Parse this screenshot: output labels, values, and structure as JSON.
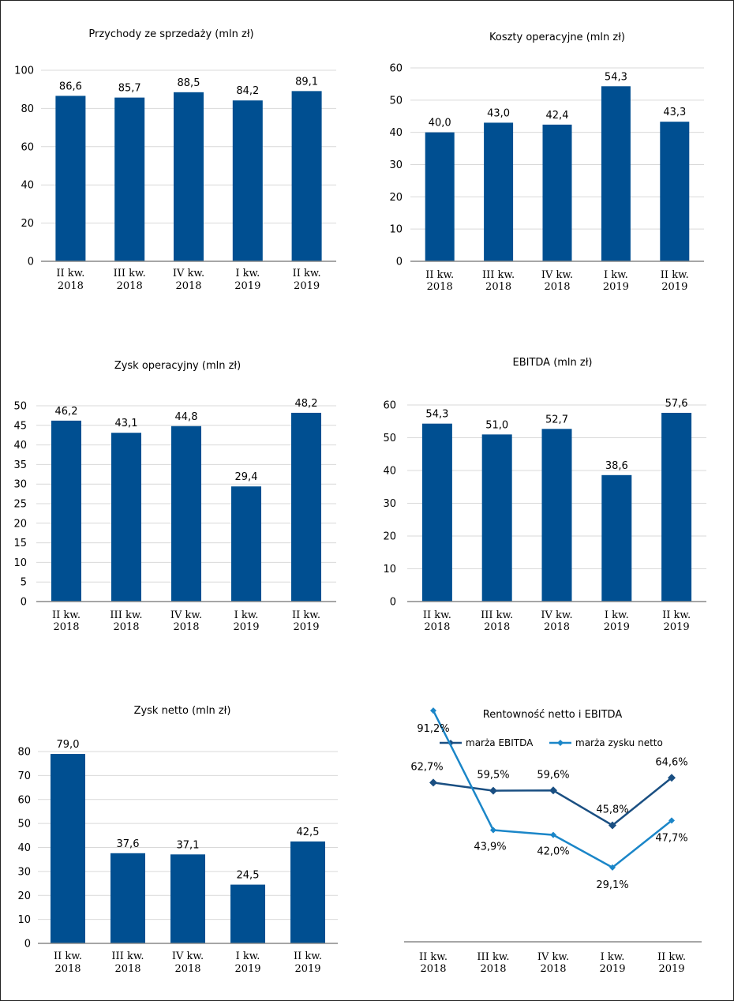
{
  "colors": {
    "bar": "#004f91",
    "ebitda_line": "#1a4f82",
    "net_line": "#1b86c8"
  },
  "chart_data": [
    {
      "type": "bar",
      "title": "Przychody ze sprzedaży (mln zł)",
      "categories": [
        [
          "II kw.",
          "2018"
        ],
        [
          "III kw.",
          "2018"
        ],
        [
          "IV kw.",
          "2018"
        ],
        [
          "I kw.",
          "2019"
        ],
        [
          "II kw.",
          "2019"
        ]
      ],
      "values": [
        86.6,
        85.7,
        88.5,
        84.2,
        89.1
      ],
      "labels": [
        "86,6",
        "85,7",
        "88,5",
        "84,2",
        "89,1"
      ],
      "ylim": [
        0,
        100
      ],
      "yticks": [
        0,
        20,
        40,
        60,
        80,
        100
      ]
    },
    {
      "type": "bar",
      "title": "Koszty operacyjne (mln zł)",
      "categories": [
        [
          "II kw.",
          "2018"
        ],
        [
          "III kw.",
          "2018"
        ],
        [
          "IV kw.",
          "2018"
        ],
        [
          "I kw.",
          "2019"
        ],
        [
          "II kw.",
          "2019"
        ]
      ],
      "values": [
        40.0,
        43.0,
        42.4,
        54.3,
        43.3
      ],
      "labels": [
        "40,0",
        "43,0",
        "42,4",
        "54,3",
        "43,3"
      ],
      "ylim": [
        0,
        60
      ],
      "yticks": [
        0,
        10,
        20,
        30,
        40,
        50,
        60
      ]
    },
    {
      "type": "bar",
      "title": "Zysk operacyjny (mln zł)",
      "categories": [
        [
          "II kw.",
          "2018"
        ],
        [
          "III kw.",
          "2018"
        ],
        [
          "IV kw.",
          "2018"
        ],
        [
          "I kw.",
          "2019"
        ],
        [
          "II kw.",
          "2019"
        ]
      ],
      "values": [
        46.2,
        43.1,
        44.8,
        29.4,
        48.2
      ],
      "labels": [
        "46,2",
        "43,1",
        "44,8",
        "29,4",
        "48,2"
      ],
      "ylim": [
        0,
        50
      ],
      "yticks": [
        0,
        5,
        10,
        15,
        20,
        25,
        30,
        35,
        40,
        45,
        50
      ]
    },
    {
      "type": "bar",
      "title": "EBITDA (mln zł)",
      "categories": [
        [
          "II kw.",
          "2018"
        ],
        [
          "III kw.",
          "2018"
        ],
        [
          "IV kw.",
          "2018"
        ],
        [
          "I kw.",
          "2019"
        ],
        [
          "II kw.",
          "2019"
        ]
      ],
      "values": [
        54.3,
        51.0,
        52.7,
        38.6,
        57.6
      ],
      "labels": [
        "54,3",
        "51,0",
        "52,7",
        "38,6",
        "57,6"
      ],
      "ylim": [
        0,
        60
      ],
      "yticks": [
        0,
        10,
        20,
        30,
        40,
        50,
        60
      ]
    },
    {
      "type": "bar",
      "title": "Zysk netto (mln zł)",
      "categories": [
        [
          "II kw.",
          "2018"
        ],
        [
          "III kw.",
          "2018"
        ],
        [
          "IV kw.",
          "2018"
        ],
        [
          "I kw.",
          "2019"
        ],
        [
          "II kw.",
          "2019"
        ]
      ],
      "values": [
        79.0,
        37.6,
        37.1,
        24.5,
        42.5
      ],
      "labels": [
        "79,0",
        "37,6",
        "37,1",
        "24,5",
        "42,5"
      ],
      "ylim": [
        0,
        80
      ],
      "yticks": [
        0,
        10,
        20,
        30,
        40,
        50,
        60,
        70,
        80
      ]
    },
    {
      "type": "line",
      "title": "Rentowność netto i EBITDA",
      "categories": [
        [
          "II kw.",
          "2018"
        ],
        [
          "III kw.",
          "2018"
        ],
        [
          "IV kw.",
          "2018"
        ],
        [
          "I kw.",
          "2019"
        ],
        [
          "II kw.",
          "2019"
        ]
      ],
      "series": [
        {
          "name": "marża EBITDA",
          "values": [
            62.7,
            59.5,
            59.6,
            45.8,
            64.6
          ],
          "labels": [
            "62,7%",
            "59,5%",
            "59,6%",
            "45,8%",
            "64,6%"
          ]
        },
        {
          "name": "marża zysku netto",
          "values": [
            91.2,
            43.9,
            42.0,
            29.1,
            47.7
          ],
          "labels": [
            "91,2%",
            "43,9%",
            "42,0%",
            "29,1%",
            "47,7%"
          ]
        }
      ],
      "legend": "top"
    }
  ]
}
